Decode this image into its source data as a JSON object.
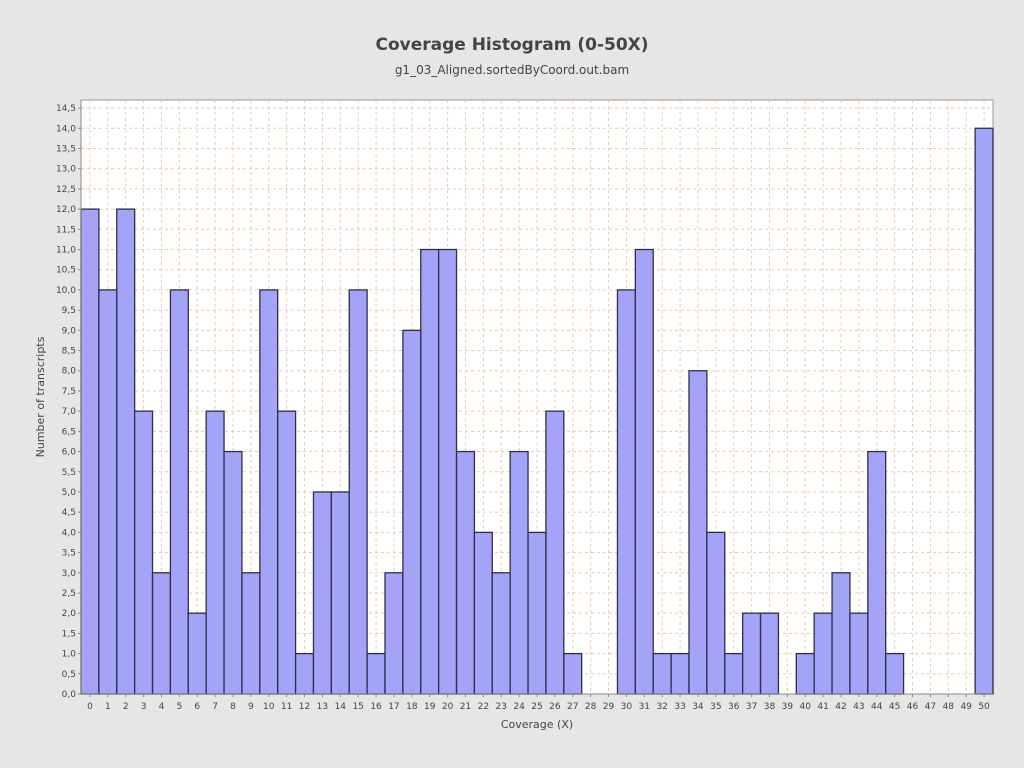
{
  "chart_data": {
    "type": "bar",
    "title": "Coverage Histogram (0-50X)",
    "subtitle": "g1_03_Aligned.sortedByCoord.out.bam",
    "xlabel": "Coverage (X)",
    "ylabel": "Number of transcripts",
    "categories": [
      "0",
      "1",
      "2",
      "3",
      "4",
      "5",
      "6",
      "7",
      "8",
      "9",
      "10",
      "11",
      "12",
      "13",
      "14",
      "15",
      "16",
      "17",
      "18",
      "19",
      "20",
      "21",
      "22",
      "23",
      "24",
      "25",
      "26",
      "27",
      "28",
      "29",
      "30",
      "31",
      "32",
      "33",
      "34",
      "35",
      "36",
      "37",
      "38",
      "39",
      "40",
      "41",
      "42",
      "43",
      "44",
      "45",
      "46",
      "47",
      "48",
      "49",
      "50"
    ],
    "values": [
      12,
      10,
      12,
      7,
      3,
      10,
      2,
      7,
      6,
      3,
      10,
      7,
      1,
      5,
      5,
      10,
      1,
      3,
      9,
      11,
      11,
      6,
      4,
      3,
      6,
      4,
      7,
      1,
      0,
      0,
      10,
      11,
      1,
      1,
      8,
      4,
      1,
      2,
      2,
      0,
      1,
      2,
      3,
      2,
      6,
      1,
      0,
      0,
      0,
      0,
      14
    ],
    "ylim": [
      0,
      14.7
    ],
    "yticks": [
      "0,0",
      "0,5",
      "1,0",
      "1,5",
      "2,0",
      "2,5",
      "3,0",
      "3,5",
      "4,0",
      "4,5",
      "5,0",
      "5,5",
      "6,0",
      "6,5",
      "7,0",
      "7,5",
      "8,0",
      "8,5",
      "9,0",
      "9,5",
      "10,0",
      "10,5",
      "11,0",
      "11,5",
      "12,0",
      "12,5",
      "13,0",
      "13,5",
      "14,0",
      "14,5"
    ],
    "grid": true,
    "colors": {
      "bar_fill": "#a3a3f7",
      "bar_stroke": "#2e2e48",
      "grid": "#f0c8a8",
      "plot_bg": "#ffffff",
      "page_bg": "#e6e6e6"
    }
  }
}
